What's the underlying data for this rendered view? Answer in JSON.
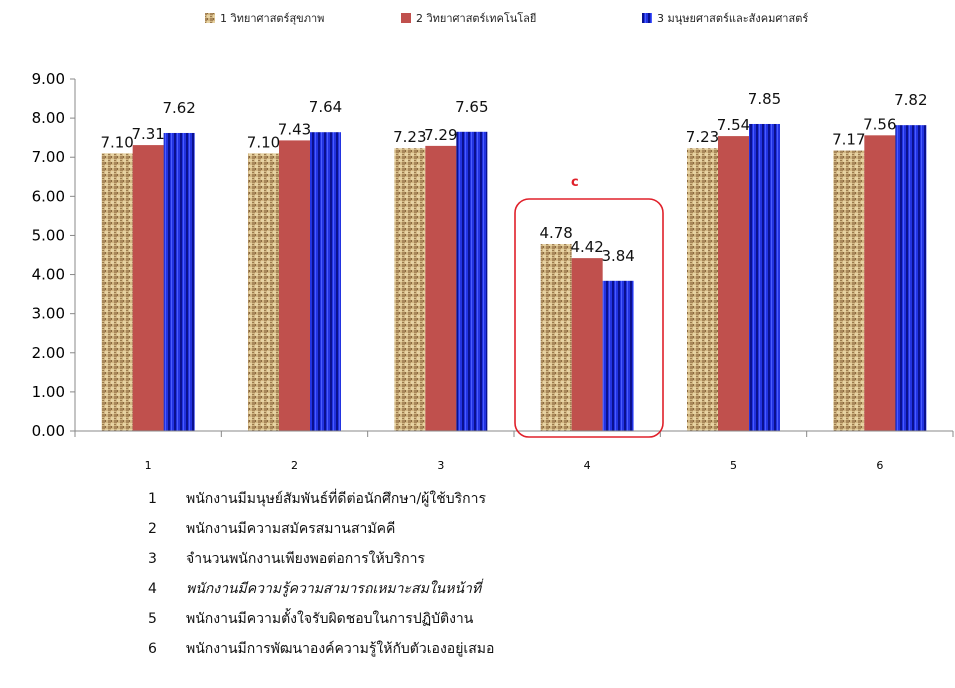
{
  "chart_data": {
    "type": "bar",
    "categories": [
      "1",
      "2",
      "3",
      "4",
      "5",
      "6"
    ],
    "series": [
      {
        "name": "1 วิทยาศาสตร์สุขภาพ",
        "values": [
          7.1,
          7.1,
          7.23,
          4.78,
          7.23,
          7.17
        ],
        "value_labels": [
          "7.10",
          "7.10",
          "7.23",
          "4.78",
          "7.23",
          "7.17"
        ],
        "color": "#c8ad78",
        "pattern": "burlap"
      },
      {
        "name": "2 วิทยาศาสตร์เทคโนโลยี",
        "values": [
          7.31,
          7.43,
          7.29,
          4.42,
          7.54,
          7.56
        ],
        "value_labels": [
          "7.31",
          "7.43",
          "7.29",
          "4.42",
          "7.54",
          "7.56"
        ],
        "color": "#c0504d",
        "pattern": "solid"
      },
      {
        "name": "3 มนุษยศาสตร์และสังคมศาสตร์",
        "values": [
          7.62,
          7.64,
          7.65,
          3.84,
          7.85,
          7.82
        ],
        "value_labels": [
          "7.62",
          "7.64",
          "7.65",
          "3.84",
          "7.85",
          "7.82"
        ],
        "color": "#1f2fd6",
        "pattern": "stripes"
      }
    ],
    "y_ticks": [
      "0.00",
      "1.00",
      "2.00",
      "3.00",
      "4.00",
      "5.00",
      "6.00",
      "7.00",
      "8.00",
      "9.00"
    ],
    "ylim": [
      0,
      9
    ],
    "grid": false,
    "legend_position": "top",
    "title": "",
    "xlabel": "",
    "ylabel": "",
    "annotation": {
      "text": "c",
      "category": "4",
      "color": "#e0202a"
    }
  },
  "notes": [
    {
      "num": "1",
      "text": "พนักงานมีมนุษย์สัมพันธ์ที่ดีต่อนักศึกษา/ผู้ใช้บริการ",
      "italic": false
    },
    {
      "num": "2",
      "text": "พนักงานมีความสมัครสมานสามัคคี",
      "italic": false
    },
    {
      "num": "3",
      "text": "จำนวนพนักงานเพียงพอต่อการให้บริการ",
      "italic": false
    },
    {
      "num": "4",
      "text": "พนักงานมีความรู้ความสามารถเหมาะสมในหน้าที่",
      "italic": true
    },
    {
      "num": "5",
      "text": "พนักงานมีความตั้งใจรับผิดชอบในการปฏิบัติงาน",
      "italic": false
    },
    {
      "num": "6",
      "text": "พนักงานมีการพัฒนาองค์ความรู้ให้กับตัวเองอยู่เสมอ",
      "italic": false
    }
  ]
}
